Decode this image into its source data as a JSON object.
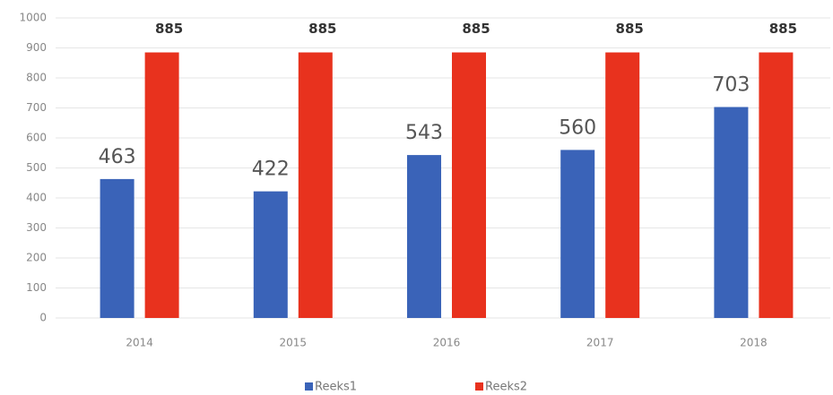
{
  "chart_data": {
    "type": "bar",
    "categories": [
      "2014",
      "2015",
      "2016",
      "2017",
      "2018"
    ],
    "series": [
      {
        "name": "Reeks1",
        "color": "#3a63b8",
        "values": [
          463,
          422,
          543,
          560,
          703
        ]
      },
      {
        "name": "Reeks2",
        "color": "#e8321e",
        "values": [
          885,
          885,
          885,
          885,
          885
        ]
      }
    ],
    "ylim": [
      0,
      1000
    ],
    "yticks": [
      0,
      100,
      200,
      300,
      400,
      500,
      600,
      700,
      800,
      900,
      1000
    ],
    "grid": true,
    "legend": "bottom"
  }
}
